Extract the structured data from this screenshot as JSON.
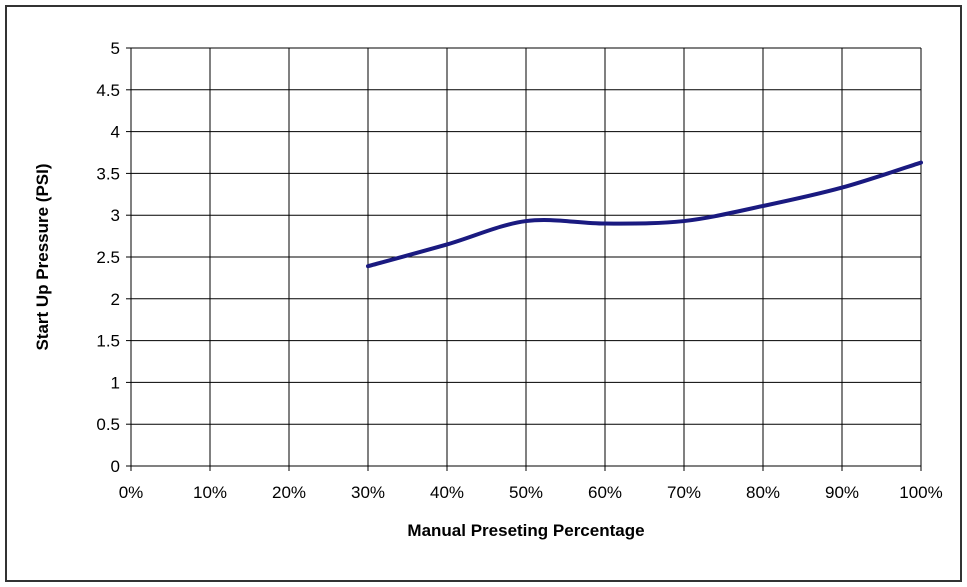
{
  "chart_data": {
    "type": "line",
    "title": "",
    "xlabel": "Manual Preseting Percentage",
    "ylabel": "Start Up Pressure (PSI)",
    "x_tick_labels": [
      "0%",
      "10%",
      "20%",
      "30%",
      "40%",
      "50%",
      "60%",
      "70%",
      "80%",
      "90%",
      "100%"
    ],
    "y_tick_labels": [
      "0",
      "0.5",
      "1",
      "1.5",
      "2",
      "2.5",
      "3",
      "3.5",
      "4",
      "4.5",
      "5"
    ],
    "xlim": [
      0,
      100
    ],
    "ylim": [
      0,
      5
    ],
    "grid": true,
    "legend": "none",
    "series": [
      {
        "color": "#1a1a80",
        "x": [
          30,
          40,
          50,
          60,
          70,
          80,
          90,
          100
        ],
        "y": [
          2.39,
          2.65,
          2.93,
          2.9,
          2.93,
          3.11,
          3.33,
          3.63
        ]
      }
    ]
  }
}
